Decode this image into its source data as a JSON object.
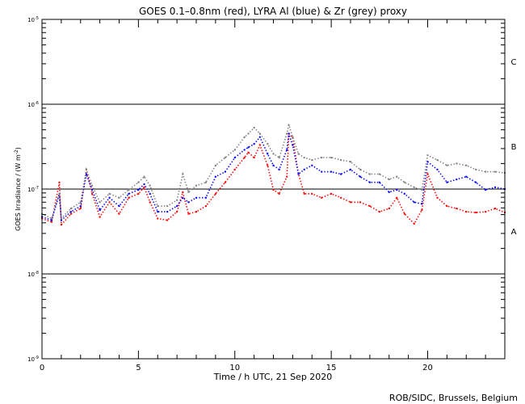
{
  "chart_data": {
    "type": "scatter",
    "title": "GOES 0.1–0.8nm (red), LYRA Al (blue) & Zr (grey) proxy",
    "xlabel": "Time / h UTC, 21 Sep 2020",
    "ylabel": "GOES Irradiance / (W m",
    "ylabel_exp": "-2",
    "ylabel_close": ")",
    "xlim": [
      0,
      24
    ],
    "ylim": [
      1e-09,
      1e-05
    ],
    "yscale": "log",
    "x_ticks": [
      0,
      5,
      10,
      15,
      20
    ],
    "x_tick_labels": [
      "0",
      "5",
      "10",
      "15",
      "20"
    ],
    "y_ticks": [
      {
        "value": 1e-05,
        "base": "10",
        "exp": "-5"
      },
      {
        "value": 1e-06,
        "base": "10",
        "exp": "-6"
      },
      {
        "value": 1e-07,
        "base": "10",
        "exp": "-7"
      },
      {
        "value": 1e-08,
        "base": "10",
        "exp": "-8"
      },
      {
        "value": 1e-09,
        "base": "10",
        "exp": "-9"
      }
    ],
    "reference_lines": [
      1e-06,
      1e-07,
      1e-08
    ],
    "class_labels": [
      {
        "label": "C",
        "value": 3.2e-06
      },
      {
        "label": "B",
        "value": 3.2e-07
      },
      {
        "label": "A",
        "value": 3.2e-08
      }
    ],
    "x": [
      0,
      0.5,
      0.9,
      1,
      1.5,
      2,
      2.3,
      2.6,
      3,
      3.5,
      4,
      4.5,
      5,
      5.3,
      5.6,
      6,
      6.5,
      7,
      7.3,
      7.6,
      8,
      8.5,
      9,
      9.5,
      10,
      10.5,
      10.7,
      11,
      11.3,
      11.7,
      12,
      12.3,
      12.7,
      12.8,
      13,
      13.3,
      13.6,
      14,
      14.5,
      15,
      15.5,
      16,
      16.5,
      17,
      17.5,
      18,
      18.4,
      18.8,
      19.3,
      19.7,
      20,
      20.5,
      21,
      21.5,
      22,
      22.5,
      23,
      23.5,
      24
    ],
    "series": [
      {
        "name": "GOES 0.1-0.8nm",
        "color": "#ff0000",
        "values": [
          4.5e-08,
          4.1e-08,
          1.2e-07,
          3.8e-08,
          5.1e-08,
          5.9e-08,
          1.7e-07,
          8.8e-08,
          4.7e-08,
          7e-08,
          5.1e-08,
          7.9e-08,
          8.8e-08,
          1.05e-07,
          7e-08,
          4.5e-08,
          4.3e-08,
          5.4e-08,
          9.2e-08,
          5.1e-08,
          5.4e-08,
          6.3e-08,
          8.8e-08,
          1.2e-07,
          1.7e-07,
          2.35e-07,
          2.7e-07,
          2.35e-07,
          3.3e-07,
          1.9e-07,
          9.8e-08,
          8.8e-08,
          1.4e-07,
          4.5e-07,
          4.1e-07,
          1.5e-07,
          8.8e-08,
          8.8e-08,
          7.9e-08,
          8.8e-08,
          7.9e-08,
          7e-08,
          7e-08,
          6.3e-08,
          5.4e-08,
          5.9e-08,
          7.9e-08,
          5.1e-08,
          3.9e-08,
          5.65e-08,
          1.5e-07,
          7.9e-08,
          6.3e-08,
          5.9e-08,
          5.4e-08,
          5.3e-08,
          5.4e-08,
          5.9e-08,
          5.3e-08
        ]
      },
      {
        "name": "LYRA Al proxy",
        "color": "#0000ff",
        "values": [
          4.7e-08,
          4.3e-08,
          8.8e-08,
          4.3e-08,
          5.4e-08,
          6.3e-08,
          1.5e-07,
          9.8e-08,
          5.65e-08,
          7.9e-08,
          6.3e-08,
          8.8e-08,
          9.8e-08,
          1.14e-07,
          8.8e-08,
          5.4e-08,
          5.4e-08,
          6.3e-08,
          7.9e-08,
          7e-08,
          7.9e-08,
          7.9e-08,
          1.4e-07,
          1.6e-07,
          2.35e-07,
          2.9e-07,
          3.1e-07,
          3.4e-07,
          4.1e-07,
          2.6e-07,
          1.9e-07,
          1.7e-07,
          2.9e-07,
          4.5e-07,
          3.3e-07,
          1.5e-07,
          1.7e-07,
          1.9e-07,
          1.6e-07,
          1.6e-07,
          1.5e-07,
          1.7e-07,
          1.4e-07,
          1.2e-07,
          1.2e-07,
          9.2e-08,
          9.8e-08,
          8.8e-08,
          7e-08,
          6.7e-08,
          2.1e-07,
          1.7e-07,
          1.2e-07,
          1.3e-07,
          1.4e-07,
          1.2e-07,
          9.8e-08,
          1.05e-07,
          1e-07
        ]
      },
      {
        "name": "LYRA Zr proxy",
        "color": "#808080",
        "values": [
          5.1e-08,
          4.5e-08,
          8.8e-08,
          4.5e-08,
          5.9e-08,
          7e-08,
          1.7e-07,
          1.1e-07,
          7e-08,
          8.8e-08,
          7.9e-08,
          9.8e-08,
          1.2e-07,
          1.4e-07,
          1.1e-07,
          6.3e-08,
          6.3e-08,
          7.4e-08,
          1.5e-07,
          9.2e-08,
          1.1e-07,
          1.2e-07,
          1.9e-07,
          2.35e-07,
          2.9e-07,
          4.1e-07,
          4.5e-07,
          5.3e-07,
          4.5e-07,
          3.4e-07,
          2.6e-07,
          2.35e-07,
          4.5e-07,
          5.7e-07,
          4.1e-07,
          2.6e-07,
          2.35e-07,
          2.2e-07,
          2.35e-07,
          2.35e-07,
          2.2e-07,
          2.1e-07,
          1.7e-07,
          1.5e-07,
          1.5e-07,
          1.3e-07,
          1.4e-07,
          1.2e-07,
          1.05e-07,
          9.8e-08,
          2.5e-07,
          2.2e-07,
          1.9e-07,
          2e-07,
          1.9e-07,
          1.7e-07,
          1.6e-07,
          1.6e-07,
          1.55e-07
        ]
      }
    ],
    "legend": "in title",
    "credit": "ROB/SIDC, Brussels, Belgium"
  }
}
